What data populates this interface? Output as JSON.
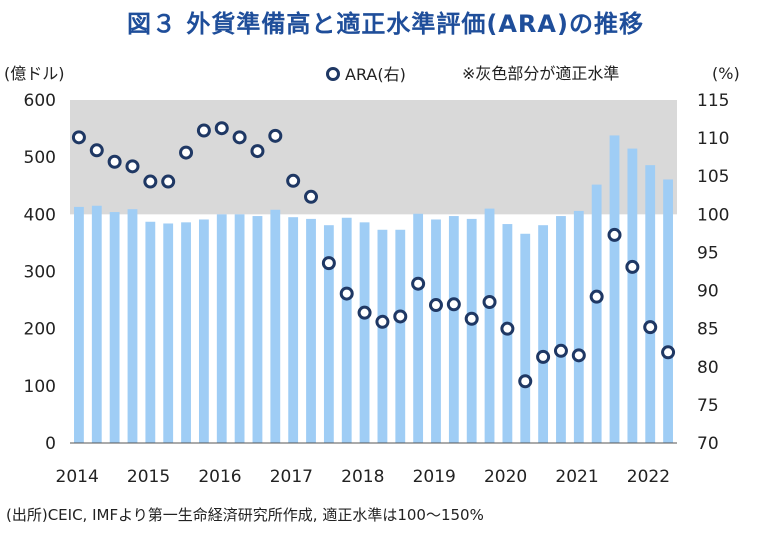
{
  "chart_data": {
    "type": "bar",
    "title": "図３ 外貨準備高と適正水準評価(ARA)の推移",
    "left_unit": "(億ドル)",
    "right_unit": "(%)",
    "legend_ara": "ARA(右)",
    "legend_note": "※灰色部分が適正水準",
    "source": "(出所)CEIC, IMFより第一生命経済研究所作成, 適正水準は100〜150%",
    "ylim_left": [
      0,
      600
    ],
    "ylim_right": [
      70,
      115
    ],
    "yticks_left": [
      "0",
      "100",
      "200",
      "300",
      "400",
      "500",
      "600"
    ],
    "yticks_right": [
      "70",
      "75",
      "80",
      "85",
      "90",
      "95",
      "100",
      "105",
      "110",
      "115"
    ],
    "x_labels": [
      "2014",
      "2015",
      "2016",
      "2017",
      "2018",
      "2019",
      "2020",
      "2021",
      "2022"
    ],
    "adequate_band_pct": [
      100,
      150
    ],
    "colors": {
      "bar": "#9fcdf5",
      "band": "#d9d9d9",
      "marker": "#1f3864",
      "title": "#1f4e9a"
    },
    "series": [
      {
        "name": "外貨準備高 (億ドル, 左)",
        "values": [
          413,
          415,
          404,
          409,
          387,
          384,
          386,
          391,
          400,
          400,
          397,
          408,
          395,
          392,
          381,
          394,
          386,
          373,
          373,
          401,
          391,
          397,
          392,
          410,
          383,
          366,
          381,
          397,
          406,
          452,
          538,
          515,
          486,
          461
        ]
      },
      {
        "name": "ARA (%, 右)",
        "values": [
          110.1,
          108.4,
          106.9,
          106.3,
          104.3,
          104.3,
          108.1,
          111,
          111.3,
          110.1,
          108.3,
          110.3,
          104.4,
          102.3,
          93.6,
          89.6,
          87.1,
          85.9,
          86.6,
          90.9,
          88.1,
          88.2,
          86.3,
          88.5,
          85,
          78.1,
          81.3,
          82.1,
          81.5,
          89.2,
          97.3,
          93.1,
          85.2,
          81.9
        ]
      }
    ]
  }
}
